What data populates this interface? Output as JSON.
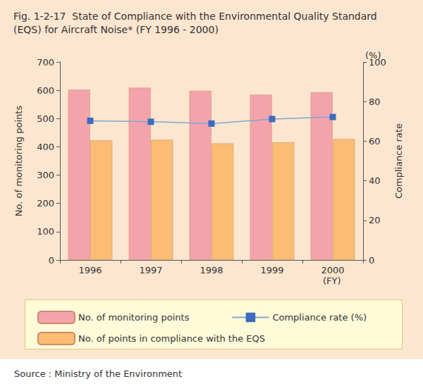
{
  "chart_data": {
    "type": "bar",
    "title": "Fig. 1-2-17  State of Compliance with the Environmental Quality Standard (EQS) for Aircraft Noise* (FY 1996 - 2000)",
    "categories": [
      "1996",
      "1997",
      "1998",
      "1999",
      "2000"
    ],
    "xlabel": "(FY)",
    "ylabel": "No. of monitoring points",
    "y2label": "Compliance rate",
    "y2_unit": "(%)",
    "source": "Source : Ministry of the Environment",
    "series": [
      {
        "name": "No. of monitoring points",
        "type": "bar",
        "color": "#f4a3ab",
        "values": [
          602,
          609,
          598,
          584,
          593
        ]
      },
      {
        "name": "No. of points in compliance with the EQS",
        "type": "bar",
        "color": "#fbbd73",
        "values": [
          423,
          425,
          412,
          416,
          428
        ]
      },
      {
        "name": "Compliance rate (%)",
        "type": "line",
        "axis": "y2",
        "marker": "square",
        "color": "#3a6cc0",
        "values": [
          70.3,
          69.8,
          68.9,
          71.2,
          72.2
        ]
      }
    ],
    "ylim": [
      0,
      700
    ],
    "yticks": [
      0,
      100,
      200,
      300,
      400,
      500,
      600,
      700
    ],
    "y2lim": [
      0,
      100
    ],
    "y2ticks": [
      0,
      20,
      40,
      60,
      80,
      100
    ],
    "grid": false
  }
}
